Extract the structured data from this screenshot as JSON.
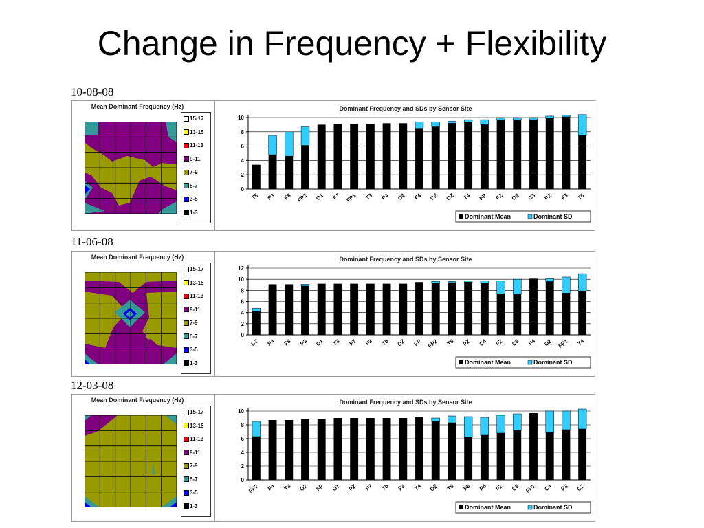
{
  "slide": {
    "title": "Change in Frequency + Flexibility"
  },
  "legend_labels": [
    "15-17",
    "13-15",
    "11-13",
    "9-11",
    "7-9",
    "5-7",
    "3-5",
    "1-3"
  ],
  "legend_colors": [
    "#ffffff",
    "#ffff00",
    "#ff0000",
    "#800080",
    "#999900",
    "#339999",
    "#0000ff",
    "#000000"
  ],
  "colors": {
    "mean": "#000000",
    "sd": "#33ccff",
    "map_bg": "#999900",
    "map_purple": "#800080",
    "map_teal": "#339999",
    "map_blue": "#0000ff"
  },
  "panels": [
    {
      "date": "10-08-08",
      "map_title": "Mean Dominant Frequency (Hz)",
      "chart_title": "Dominant Frequency and SDs by Sensor Site",
      "legend": [
        "Dominant Mean",
        "Dominant SD"
      ]
    },
    {
      "date": "11-06-08",
      "map_title": "Mean Dominant Frequency (Hz)",
      "chart_title": "Dominant Frequency and SDs by Sensor Site",
      "legend": [
        "Dominant Mean",
        "Dominant SD"
      ]
    },
    {
      "date": "12-03-08",
      "map_title": "Mean Dominant Frequency (Hz)",
      "chart_title": "Dominant Frequency and SDs by Sensor Site",
      "legend": [
        "Dominant Mean",
        "Dominant SD"
      ]
    }
  ],
  "chart_data": [
    {
      "type": "bar",
      "title": "Dominant Frequency and SDs by Sensor Site",
      "stacked": true,
      "categories": [
        "T5",
        "P3",
        "F8",
        "FP2",
        "O1",
        "F7",
        "FP1",
        "T3",
        "P4",
        "C4",
        "F4",
        "CZ",
        "OZ",
        "T4",
        "FP",
        "FZ",
        "O2",
        "C3",
        "PZ",
        "F3",
        "T6"
      ],
      "series": [
        {
          "name": "Dominant Mean",
          "values": [
            3.4,
            4.8,
            4.6,
            6.1,
            9.0,
            9.1,
            9.1,
            9.1,
            9.2,
            9.2,
            8.5,
            8.7,
            9.2,
            9.4,
            9.0,
            9.7,
            9.7,
            9.7,
            9.9,
            10.1,
            7.5
          ]
        },
        {
          "name": "Dominant SD",
          "values": [
            0,
            2.7,
            3.4,
            2.6,
            0,
            0,
            0,
            0,
            0,
            0,
            0.9,
            0.7,
            0.3,
            0.3,
            0.7,
            0.3,
            0.3,
            0.3,
            0.3,
            0.2,
            2.9
          ]
        }
      ],
      "ylim": [
        0,
        10
      ],
      "yticks": [
        0,
        2,
        4,
        6,
        8,
        10
      ],
      "legend_position": "bottom-right"
    },
    {
      "type": "bar",
      "title": "Dominant Frequency and SDs by Sensor Site",
      "stacked": true,
      "categories": [
        "CZ",
        "P4",
        "F8",
        "P3",
        "O1",
        "T3",
        "F7",
        "F3",
        "T5",
        "OZ",
        "FP",
        "FP2",
        "T6",
        "PZ",
        "C4",
        "FZ",
        "C3",
        "F4",
        "O2",
        "FP1",
        "T4"
      ],
      "series": [
        {
          "name": "Dominant Mean",
          "values": [
            4.2,
            9.1,
            9.1,
            8.8,
            9.2,
            9.2,
            9.2,
            9.2,
            9.2,
            9.2,
            9.5,
            9.3,
            9.4,
            9.5,
            9.3,
            7.4,
            7.3,
            10.1,
            9.6,
            7.5,
            7.9
          ]
        },
        {
          "name": "Dominant SD",
          "values": [
            0.6,
            0,
            0,
            0.3,
            0,
            0,
            0,
            0,
            0,
            0,
            0,
            0.3,
            0.2,
            0.2,
            0.4,
            2.3,
            2.7,
            0,
            0.5,
            2.9,
            3.1
          ]
        }
      ],
      "ylim": [
        0,
        12
      ],
      "yticks": [
        0,
        2,
        4,
        6,
        8,
        10,
        12
      ],
      "legend_position": "bottom-right"
    },
    {
      "type": "bar",
      "title": "Dominant Frequency and SDs by Sensor Site",
      "stacked": true,
      "categories": [
        "FP2",
        "F4",
        "T3",
        "O2",
        "FP",
        "O1",
        "PZ",
        "F7",
        "T5",
        "F3",
        "T4",
        "OZ",
        "T6",
        "F8",
        "P4",
        "FZ",
        "C3",
        "FP1",
        "C4",
        "P3",
        "CZ"
      ],
      "series": [
        {
          "name": "Dominant Mean",
          "values": [
            6.3,
            8.7,
            8.7,
            8.8,
            8.9,
            9.0,
            9.0,
            9.0,
            9.0,
            9.0,
            9.1,
            8.5,
            8.3,
            6.2,
            6.5,
            6.8,
            7.2,
            9.7,
            6.9,
            7.3,
            7.4
          ]
        },
        {
          "name": "Dominant SD",
          "values": [
            2.2,
            0,
            0,
            0,
            0,
            0,
            0,
            0,
            0,
            0,
            0,
            0.5,
            1.0,
            3.0,
            2.6,
            2.6,
            2.4,
            0,
            3.1,
            2.7,
            2.9
          ]
        }
      ],
      "ylim": [
        0,
        10
      ],
      "yticks": [
        0,
        2,
        4,
        6,
        8,
        10
      ],
      "legend_position": "bottom-right"
    }
  ]
}
